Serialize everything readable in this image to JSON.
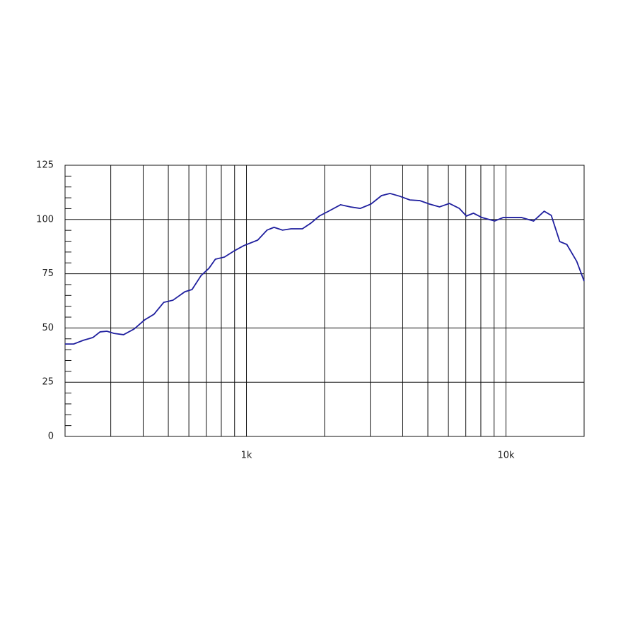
{
  "chart_data": {
    "type": "line",
    "x_scale": "log",
    "grid": true,
    "color": "#1f1f9e",
    "x": [
      200,
      216,
      235,
      256,
      273,
      290,
      309,
      336,
      369,
      405,
      440,
      480,
      521,
      579,
      617,
      669,
      717,
      759,
      823,
      899,
      975,
      1105,
      1200,
      1277,
      1377,
      1485,
      1642,
      1770,
      1909,
      2071,
      2304,
      2515,
      2747,
      3017,
      3315,
      3574,
      3902,
      4261,
      4651,
      5079,
      5545,
      6053,
      6609,
      7039,
      7494,
      8080,
      9046,
      9752,
      11480,
      12776,
      14034,
      14944,
      16114,
      17154,
      18733,
      20000
    ],
    "values": [
      42.6,
      42.6,
      44.3,
      45.6,
      48.2,
      48.5,
      47.5,
      46.9,
      49.5,
      53.7,
      56.3,
      61.8,
      62.8,
      66.7,
      67.7,
      74.2,
      77.5,
      81.7,
      82.7,
      85.6,
      87.9,
      90.5,
      95.1,
      96.4,
      95.1,
      95.7,
      95.7,
      98.3,
      101.6,
      103.8,
      106.8,
      105.8,
      105.1,
      107.1,
      111.0,
      112.0,
      110.7,
      109.0,
      108.7,
      107.1,
      105.8,
      107.4,
      105.1,
      101.6,
      102.9,
      100.9,
      99.3,
      100.9,
      100.9,
      99.3,
      103.8,
      101.9,
      89.8,
      88.5,
      80.7,
      71.6
    ],
    "xlim": [
      200,
      20000
    ],
    "xticks": [
      {
        "value": 1000,
        "label": "1k"
      },
      {
        "value": 10000,
        "label": "10k"
      }
    ],
    "xgrid": [
      300,
      400,
      500,
      600,
      700,
      800,
      900,
      2000,
      3000,
      4000,
      5000,
      6000,
      7000,
      8000,
      9000
    ],
    "ylim": [
      0,
      125
    ],
    "yticks": [
      0,
      25,
      50,
      75,
      100,
      125
    ],
    "yminor": [
      5,
      10,
      15,
      20,
      30,
      35,
      40,
      45,
      55,
      60,
      65,
      70,
      80,
      85,
      90,
      95,
      105,
      110,
      115,
      120
    ]
  }
}
